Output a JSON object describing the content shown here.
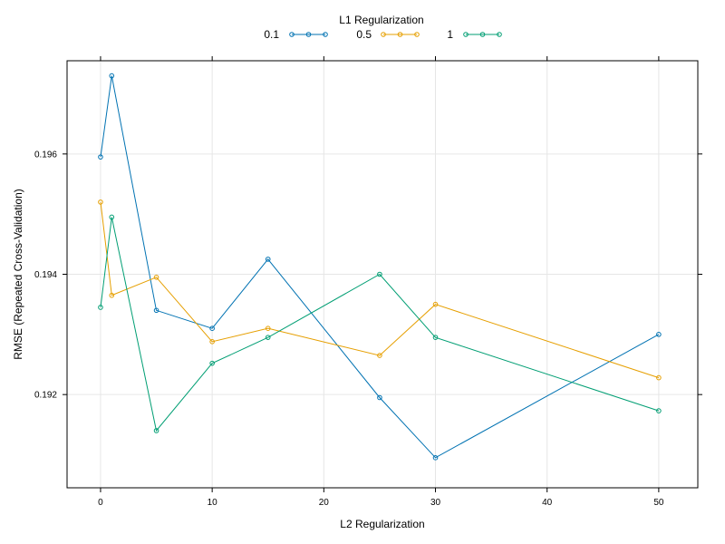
{
  "chart_data": {
    "type": "line",
    "title": "",
    "xlabel": "L2 Regularization",
    "ylabel": "RMSE (Repeated Cross-Validation)",
    "xlim": [
      -3,
      53.5
    ],
    "ylim": [
      0.19045,
      0.19755
    ],
    "x_ticks": [
      0,
      10,
      20,
      30,
      40,
      50
    ],
    "x_tick_labels": [
      "0",
      "10",
      "20",
      "30",
      "40",
      "50"
    ],
    "y_ticks": [
      0.192,
      0.194,
      0.196
    ],
    "y_tick_labels": [
      "0.192",
      "0.194",
      "0.196"
    ],
    "grid": true,
    "legend": {
      "title": "L1 Regularization",
      "position": "top"
    },
    "x": [
      0,
      1,
      5,
      10,
      15,
      25,
      30,
      50
    ],
    "series": [
      {
        "name": "0.1",
        "color": "#0072b2",
        "values": [
          0.19595,
          0.1973,
          0.1934,
          0.1931,
          0.19425,
          0.19195,
          0.19095,
          0.193
        ]
      },
      {
        "name": "0.5",
        "color": "#e69f00",
        "values": [
          0.1952,
          0.19365,
          0.19395,
          0.19288,
          0.1931,
          0.19265,
          0.1935,
          0.19228
        ]
      },
      {
        "name": "1",
        "color": "#009e73",
        "values": [
          0.19345,
          0.19495,
          0.1914,
          0.19252,
          0.19295,
          0.194,
          0.19295,
          0.19173
        ]
      }
    ]
  }
}
